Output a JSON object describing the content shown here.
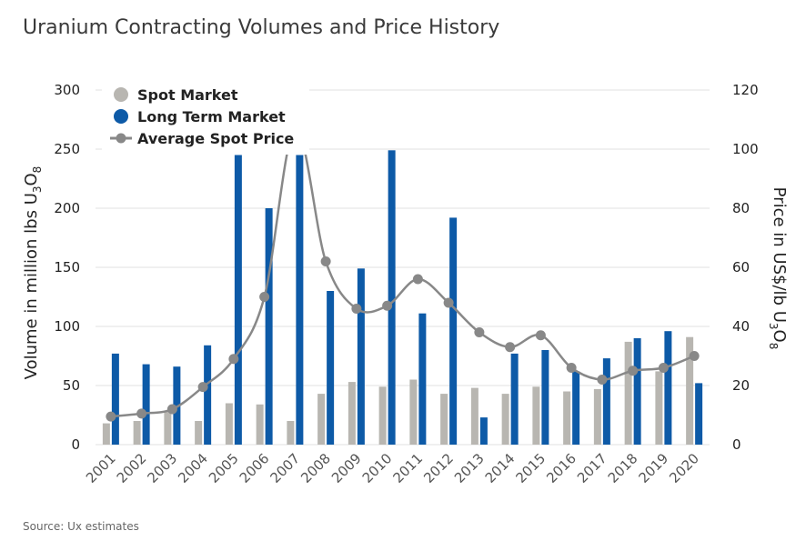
{
  "chart_data": {
    "type": "bar",
    "title": "Uranium Contracting Volumes and Price History",
    "source": "Source: Ux estimates",
    "categories": [
      "2001",
      "2002",
      "2003",
      "2004",
      "2005",
      "2006",
      "2007",
      "2008",
      "2009",
      "2010",
      "2011",
      "2012",
      "2013",
      "2014",
      "2015",
      "2016",
      "2017",
      "2018",
      "2019",
      "2020"
    ],
    "ylabel_left": {
      "prefix": "Volume in million lbs U",
      "sub1": "3",
      "mid": "O",
      "sub2": "8"
    },
    "ylabel_right": {
      "prefix": "Price in US$/lb U",
      "sub1": "3",
      "mid": "O",
      "sub2": "8"
    },
    "ylim_left": [
      0,
      300
    ],
    "ylim_right": [
      0,
      120
    ],
    "yticks_left": [
      0,
      50,
      100,
      150,
      200,
      250,
      300
    ],
    "yticks_right": [
      0,
      20,
      40,
      60,
      80,
      100,
      120
    ],
    "grid": true,
    "legend_position": "top-left",
    "series": [
      {
        "name": "Spot Market",
        "type": "bar",
        "axis": "left",
        "color": "#b8b6b1",
        "values": [
          18,
          20,
          28,
          20,
          35,
          34,
          20,
          43,
          53,
          49,
          55,
          43,
          48,
          43,
          49,
          45,
          47,
          87,
          62,
          91
        ]
      },
      {
        "name": "Long Term Market",
        "type": "bar",
        "axis": "left",
        "color": "#0d5aa7",
        "values": [
          77,
          68,
          66,
          84,
          245,
          200,
          245,
          130,
          149,
          249,
          111,
          192,
          23,
          77,
          80,
          62,
          73,
          90,
          96,
          52
        ]
      },
      {
        "name": "Average Spot Price",
        "type": "line",
        "axis": "right",
        "color": "#888888",
        "values": [
          9.5,
          10.5,
          12,
          19.5,
          29,
          50,
          107,
          62,
          46,
          47,
          56,
          48,
          38,
          33,
          37,
          26,
          22,
          25,
          26,
          30
        ]
      }
    ]
  }
}
